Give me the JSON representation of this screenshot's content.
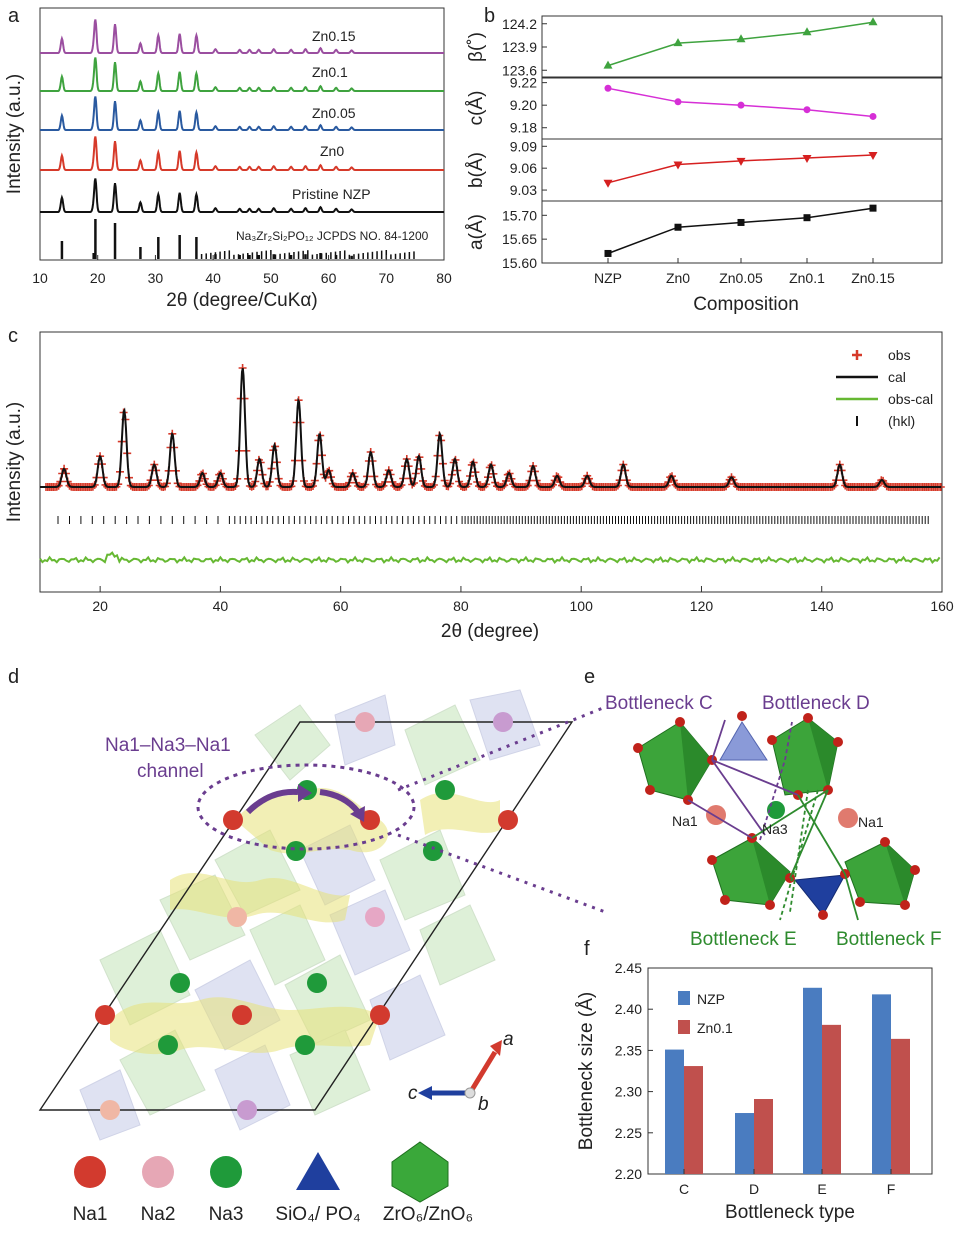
{
  "panel_labels": {
    "a": "a",
    "b": "b",
    "c": "c",
    "d": "d",
    "e": "e",
    "f": "f"
  },
  "chart_data": [
    {
      "panel": "a",
      "type": "line",
      "xlabel": "2θ (degree/CuKα)",
      "ylabel": "Intensity (a.u.)",
      "xlim": [
        10,
        80
      ],
      "xticks": [
        "10",
        "20",
        "30",
        "40",
        "50",
        "60",
        "70",
        "80"
      ],
      "series": [
        {
          "name": "Zn0.15",
          "color": "#9b4fa0"
        },
        {
          "name": "Zn0.1",
          "color": "#3fa33f"
        },
        {
          "name": "Zn0.05",
          "color": "#2a5aa0"
        },
        {
          "name": "Zn0",
          "color": "#d63a2a"
        },
        {
          "name": "Pristine NZP",
          "color": "#111111"
        }
      ],
      "peaks": [
        13.8,
        19.3,
        19.6,
        23.0,
        27.4,
        30.5,
        34.2,
        37.1,
        40.4,
        44.6,
        46.3,
        47.9,
        50.5,
        53.5,
        56.0,
        58.6,
        61.3,
        64.0
      ],
      "reference_label": "Na₃Zr₂Si₂PO₁₂ JCPDS NO. 84-1200"
    },
    {
      "panel": "b",
      "type": "line",
      "xlabel": "Composition",
      "categories": [
        "NZP",
        "Zn0",
        "Zn0.05",
        "Zn0.1",
        "Zn0.15"
      ],
      "subplots": [
        {
          "ylabel": "β(˚)",
          "yticks": [
            "124.2",
            "123.9",
            "123.6"
          ],
          "ylim": [
            123.5,
            124.3
          ],
          "values": [
            123.66,
            123.95,
            124.0,
            124.09,
            124.22
          ],
          "color": "#3fa33f",
          "marker": "triangle-up"
        },
        {
          "ylabel": "c(Å)",
          "yticks": [
            "9.22",
            "9.20",
            "9.18"
          ],
          "ylim": [
            9.17,
            9.225
          ],
          "values": [
            9.215,
            9.203,
            9.2,
            9.196,
            9.19
          ],
          "color": "#d62fd6",
          "marker": "circle"
        },
        {
          "ylabel": "b(Å)",
          "yticks": [
            "9.09",
            "9.06",
            "9.03"
          ],
          "ylim": [
            9.015,
            9.1
          ],
          "values": [
            9.04,
            9.065,
            9.07,
            9.074,
            9.078
          ],
          "color": "#d62020",
          "marker": "triangle-down"
        },
        {
          "ylabel": "a(Å)",
          "yticks": [
            "15.70",
            "15.65",
            "15.60"
          ],
          "ylim": [
            15.6,
            15.73
          ],
          "values": [
            15.62,
            15.675,
            15.685,
            15.695,
            15.715
          ],
          "color": "#111111",
          "marker": "square"
        }
      ]
    },
    {
      "panel": "c",
      "type": "line",
      "xlabel": "2θ (degree)",
      "ylabel": "Intensity (a.u.)",
      "xlim": [
        10,
        160
      ],
      "xticks": [
        "20",
        "40",
        "60",
        "80",
        "100",
        "120",
        "140",
        "160"
      ],
      "legend": [
        {
          "name": "obs",
          "symbol": "+",
          "color": "#d63a2a"
        },
        {
          "name": "cal",
          "symbol": "line",
          "color": "#111111"
        },
        {
          "name": "obs-cal",
          "symbol": "line",
          "color": "#66b832"
        },
        {
          "name": "(hkl)",
          "symbol": "|",
          "color": "#111111"
        }
      ],
      "legend_position": "top-right",
      "peaks": [
        {
          "x": 14,
          "h": 0.13
        },
        {
          "x": 20,
          "h": 0.22
        },
        {
          "x": 24,
          "h": 0.55
        },
        {
          "x": 29,
          "h": 0.16
        },
        {
          "x": 32,
          "h": 0.38
        },
        {
          "x": 37,
          "h": 0.1
        },
        {
          "x": 40,
          "h": 0.1
        },
        {
          "x": 43.7,
          "h": 0.85
        },
        {
          "x": 46.5,
          "h": 0.2
        },
        {
          "x": 49,
          "h": 0.3
        },
        {
          "x": 53,
          "h": 0.62
        },
        {
          "x": 56.5,
          "h": 0.38
        },
        {
          "x": 58,
          "h": 0.12
        },
        {
          "x": 62,
          "h": 0.1
        },
        {
          "x": 65,
          "h": 0.25
        },
        {
          "x": 68,
          "h": 0.12
        },
        {
          "x": 71,
          "h": 0.2
        },
        {
          "x": 73,
          "h": 0.22
        },
        {
          "x": 76.5,
          "h": 0.38
        },
        {
          "x": 79,
          "h": 0.2
        },
        {
          "x": 82,
          "h": 0.18
        },
        {
          "x": 85,
          "h": 0.16
        },
        {
          "x": 88,
          "h": 0.1
        },
        {
          "x": 92,
          "h": 0.15
        },
        {
          "x": 96,
          "h": 0.08
        },
        {
          "x": 101,
          "h": 0.08
        },
        {
          "x": 107,
          "h": 0.16
        },
        {
          "x": 115,
          "h": 0.08
        },
        {
          "x": 125,
          "h": 0.07
        },
        {
          "x": 143,
          "h": 0.16
        },
        {
          "x": 150,
          "h": 0.05
        }
      ]
    },
    {
      "panel": "f",
      "type": "bar",
      "xlabel": "Bottleneck type",
      "ylabel": "Bottleneck size (Å)",
      "categories": [
        "C",
        "D",
        "E",
        "F"
      ],
      "ylim": [
        2.2,
        2.45
      ],
      "yticks": [
        "2.20",
        "2.25",
        "2.30",
        "2.35",
        "2.40",
        "2.45"
      ],
      "series": [
        {
          "name": "NZP",
          "color": "#4a7cc0",
          "values": [
            2.351,
            2.274,
            2.426,
            2.418
          ]
        },
        {
          "name": "Zn0.1",
          "color": "#c0504d",
          "values": [
            2.331,
            2.291,
            2.381,
            2.364
          ]
        }
      ],
      "legend_position": "top-left"
    }
  ],
  "panel_d": {
    "channel_label_1": "Na1–Na3–Na1",
    "channel_label_2": "channel",
    "axis_a": "a",
    "axis_b": "b",
    "axis_c": "c"
  },
  "panel_e": {
    "bottleneck_c": "Bottleneck C",
    "bottleneck_d": "Bottleneck D",
    "bottleneck_e": "Bottleneck E",
    "bottleneck_f": "Bottleneck F",
    "na1_left": "Na1",
    "na3": "Na3",
    "na1_right": "Na1"
  },
  "structure_legend": [
    {
      "label": "Na1",
      "color": "#d23a2e"
    },
    {
      "label": "Na2",
      "color": "#e6a7b5"
    },
    {
      "label": "Na3",
      "color": "#1f9a3a"
    },
    {
      "label": "SiO₄/ PO₄",
      "color": "#1f3f9e"
    },
    {
      "label": "ZrO₆/ZnO₆",
      "color": "#3aa83a"
    }
  ]
}
